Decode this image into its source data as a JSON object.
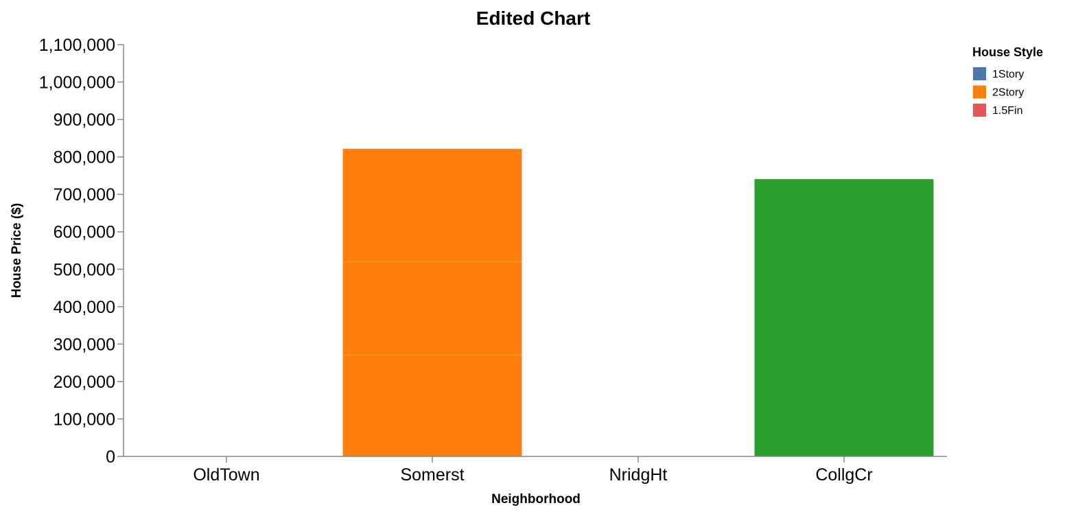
{
  "chart_data": {
    "type": "bar",
    "stacked": true,
    "title": "Edited Chart",
    "xlabel": "Neighborhood",
    "ylabel": "House Price ($)",
    "categories": [
      "OldTown",
      "Somerst",
      "NridgHt",
      "CollgCr"
    ],
    "ylim": [
      0,
      1100000
    ],
    "yticks": [
      0,
      100000,
      200000,
      300000,
      400000,
      500000,
      600000,
      700000,
      800000,
      900000,
      1000000,
      1100000
    ],
    "grid": false,
    "legend": {
      "title": "House Style",
      "placement": "top-right",
      "entries": [
        {
          "name": "1Story",
          "color": "#4c78a8"
        },
        {
          "name": "2Story",
          "color": "#ff7f0e"
        },
        {
          "name": "1.5Fin",
          "color": "#e45756"
        }
      ]
    },
    "bars": [
      {
        "category": "Somerst",
        "y0": 0,
        "y1": 270000,
        "color": "#ff7f0e"
      },
      {
        "category": "Somerst",
        "y0": 270000,
        "y1": 520000,
        "color": "#ff7f0e"
      },
      {
        "category": "Somerst",
        "y0": 520000,
        "y1": 822000,
        "color": "#ff7f0e"
      },
      {
        "category": "CollgCr",
        "y0": 0,
        "y1": 741000,
        "color": "#2ca02c"
      }
    ]
  }
}
